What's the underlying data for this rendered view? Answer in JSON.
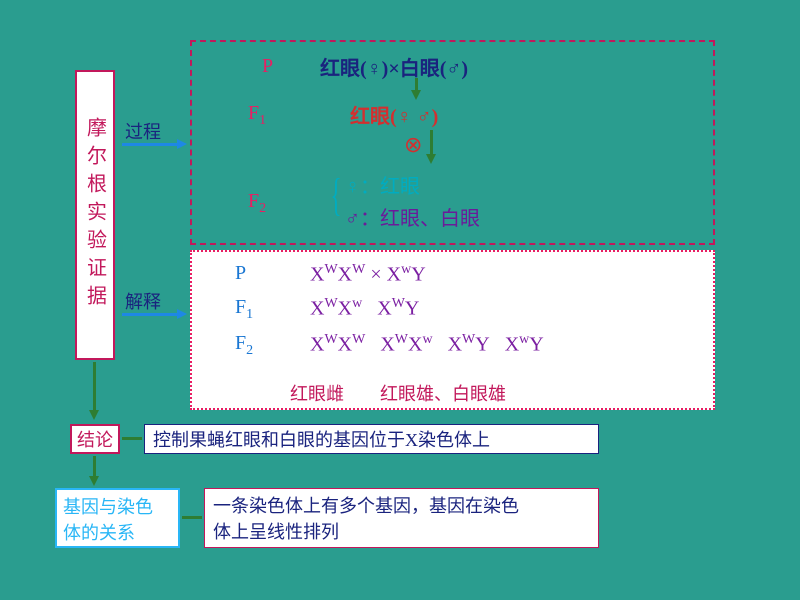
{
  "bg_color": "#2a9d8f",
  "title": {
    "text": "摩尔根实验证据",
    "border": "#c2185b",
    "color": "#c2185b",
    "fontsize": 20
  },
  "labels": {
    "process": {
      "text": "过程",
      "color": "#1a237e",
      "arrow": "#1e88e5"
    },
    "explain": {
      "text": "解释",
      "color": "#1a237e",
      "arrow": "#1e88e5"
    },
    "conclusion_key": {
      "text": "结论",
      "border": "#c2185b",
      "color": "#c2185b"
    },
    "relation_key": {
      "text_l1": "基因与染色",
      "text_l2": "体的关系",
      "border": "#29b6f6",
      "color": "#29b6f6"
    }
  },
  "process_box": {
    "border": "#c2185b",
    "P": {
      "label": "P",
      "label_color": "#e91e63",
      "text": "红眼(♀)×白眼(♂)",
      "text_color": "#1a237e"
    },
    "F1": {
      "label": "F",
      "sub": "1",
      "label_color": "#e91e63",
      "text": "红眼(♀ ♂)",
      "text_color": "#d32f2f",
      "cross": "⊗",
      "cross_color": "#d32f2f"
    },
    "F2": {
      "label": "F",
      "sub": "2",
      "label_color": "#e91e63",
      "female": "♀：红眼",
      "female_color": "#00acc1",
      "male": "♂：红眼、白眼",
      "male_color": "#6a1b9a"
    },
    "arrow_color": "#2e7d32"
  },
  "explain_box": {
    "border": "#e91e63",
    "rows": [
      {
        "label": "P",
        "label_color": "#1976d2",
        "geno_html": "X<sup>W</sup>X<sup>W</sup> × X<sup>w</sup>Y",
        "color": "#7b1fa2"
      },
      {
        "label": "F₁",
        "label_color": "#1976d2",
        "geno_html": "X<sup>W</sup>X<sup>w</sup>&nbsp;&nbsp;&nbsp;X<sup>W</sup>Y",
        "color": "#7b1fa2"
      },
      {
        "label": "F₂",
        "label_color": "#1976d2",
        "geno_html": "X<sup>W</sup>X<sup>W</sup>&nbsp;&nbsp;&nbsp;X<sup>W</sup>X<sup>w</sup>&nbsp;&nbsp;&nbsp;X<sup>W</sup>Y&nbsp;&nbsp;&nbsp;X<sup>w</sup>Y",
        "color": "#7b1fa2"
      }
    ],
    "pheno": {
      "text": "红眼雌        红眼雄、白眼雄",
      "color": "#c2185b"
    }
  },
  "conclusion": {
    "text": "控制果蝇红眼和白眼的基因位于X染色体上",
    "border": "#1a237e",
    "color": "#1a237e"
  },
  "relation": {
    "line1": "一条染色体上有多个基因，基因在染色",
    "line2": "体上呈线性排列",
    "border": "#c2185b",
    "color": "#1a237e"
  },
  "green_arrow": "#2e7d32"
}
